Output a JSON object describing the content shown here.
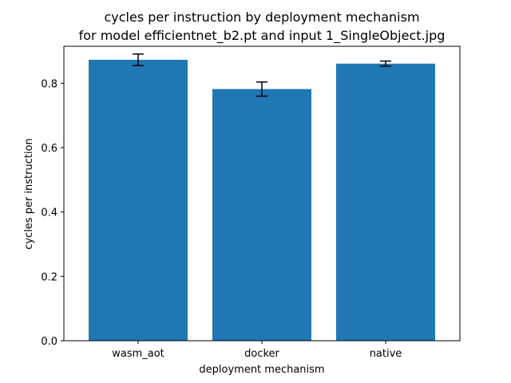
{
  "chart_data": {
    "type": "bar",
    "title": "cycles per instruction by deployment mechanism",
    "subtitle": "for model efficientnet_b2.pt and input 1_SingleObject.jpg",
    "xlabel": "deployment mechanism",
    "ylabel": "cycles per instruction",
    "categories": [
      "wasm_aot",
      "docker",
      "native"
    ],
    "values": [
      0.873,
      0.782,
      0.861
    ],
    "errors": [
      0.018,
      0.022,
      0.008
    ],
    "ylim": [
      0,
      0.915
    ],
    "yticks": [
      0.0,
      0.2,
      0.4,
      0.6,
      0.8
    ],
    "ytick_labels": [
      "0.0",
      "0.2",
      "0.4",
      "0.6",
      "0.8"
    ],
    "grid": false,
    "bar_color": "#1f77b4",
    "error_color": "#000000"
  }
}
